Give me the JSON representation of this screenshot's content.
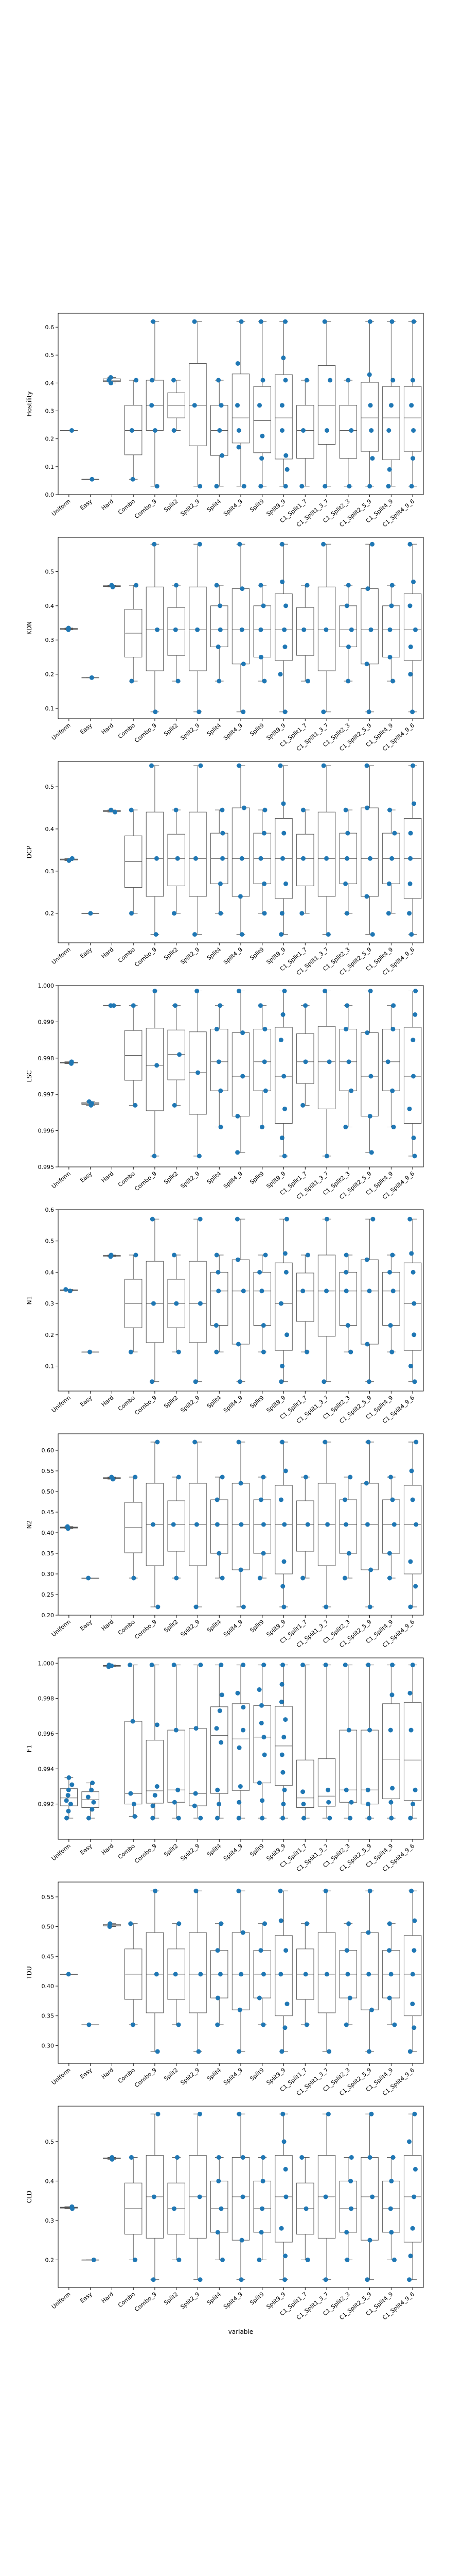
{
  "figure": {
    "xlabel": "variable"
  },
  "style": {
    "point_color": "#1f77b4",
    "box_color": "#555555"
  },
  "chart_data": [
    {
      "type": "box+strip",
      "ylabel": "Hostility",
      "ylim": [
        0.0,
        0.65
      ],
      "yticks": [
        0.0,
        0.1,
        0.2,
        0.3,
        0.4,
        0.5,
        0.6
      ],
      "categories": [
        "Uniform",
        "Easy",
        "Hard",
        "Combo",
        "Combo_9",
        "Split2",
        "Split2_9",
        "Split4",
        "Split4_9",
        "Split9",
        "Split9_9",
        "C1_Split1_7",
        "C1_Split1_3_7",
        "C1_Split2_3",
        "C1_Split2_5_9",
        "C1_Split4_9",
        "C1_Split4_9_6"
      ],
      "values": [
        [
          0.23
        ],
        [
          0.055
        ],
        [
          0.41,
          0.4,
          0.42
        ],
        [
          0.055,
          0.23,
          0.41
        ],
        [
          0.03,
          0.23,
          0.32,
          0.41,
          0.62
        ],
        [
          0.23,
          0.41
        ],
        [
          0.03,
          0.32,
          0.62
        ],
        [
          0.03,
          0.14,
          0.23,
          0.32,
          0.41
        ],
        [
          0.03,
          0.17,
          0.23,
          0.32,
          0.47,
          0.62
        ],
        [
          0.03,
          0.13,
          0.21,
          0.32,
          0.41,
          0.62
        ],
        [
          0.03,
          0.09,
          0.14,
          0.23,
          0.32,
          0.41,
          0.49,
          0.62
        ],
        [
          0.03,
          0.23,
          0.41
        ],
        [
          0.03,
          0.23,
          0.41,
          0.62
        ],
        [
          0.03,
          0.23,
          0.41
        ],
        [
          0.03,
          0.13,
          0.23,
          0.32,
          0.43,
          0.62
        ],
        [
          0.03,
          0.09,
          0.23,
          0.32,
          0.41,
          0.62
        ],
        [
          0.03,
          0.13,
          0.23,
          0.32,
          0.41,
          0.62
        ]
      ]
    },
    {
      "type": "box+strip",
      "ylabel": "KDN",
      "ylim": [
        0.07,
        0.6
      ],
      "yticks": [
        0.1,
        0.2,
        0.3,
        0.4,
        0.5
      ],
      "categories": [
        "Uniform",
        "Easy",
        "Hard",
        "Combo",
        "Combo_9",
        "Split2",
        "Split2_9",
        "Split4",
        "Split4_9",
        "Split9",
        "Split9_9",
        "C1_Split1_7",
        "C1_Split1_3_7",
        "C1_Split2_3",
        "C1_Split2_5_9",
        "C1_Split4_9",
        "C1_Split4_9_6"
      ],
      "values": [
        [
          0.335,
          0.33
        ],
        [
          0.19
        ],
        [
          0.46,
          0.455
        ],
        [
          0.18,
          0.46
        ],
        [
          0.09,
          0.33,
          0.58
        ],
        [
          0.18,
          0.33,
          0.46
        ],
        [
          0.09,
          0.33,
          0.58
        ],
        [
          0.18,
          0.28,
          0.33,
          0.4,
          0.46
        ],
        [
          0.09,
          0.23,
          0.33,
          0.45,
          0.58
        ],
        [
          0.18,
          0.25,
          0.33,
          0.4,
          0.46
        ],
        [
          0.09,
          0.2,
          0.28,
          0.33,
          0.4,
          0.47,
          0.58
        ],
        [
          0.18,
          0.33,
          0.46
        ],
        [
          0.09,
          0.33,
          0.58
        ],
        [
          0.18,
          0.28,
          0.33,
          0.4,
          0.46
        ],
        [
          0.09,
          0.23,
          0.33,
          0.45,
          0.58
        ],
        [
          0.18,
          0.25,
          0.33,
          0.4,
          0.46
        ],
        [
          0.09,
          0.2,
          0.28,
          0.33,
          0.4,
          0.47,
          0.58
        ]
      ]
    },
    {
      "type": "box+strip",
      "ylabel": "DCP",
      "ylim": [
        0.13,
        0.56
      ],
      "yticks": [
        0.2,
        0.3,
        0.4,
        0.5
      ],
      "categories": [
        "Uniform",
        "Easy",
        "Hard",
        "Combo",
        "Combo_9",
        "Split2",
        "Split2_9",
        "Split4",
        "Split4_9",
        "Split9",
        "Split9_9",
        "C1_Split1_7",
        "C1_Split1_3_7",
        "C1_Split2_3",
        "C1_Split2_5_9",
        "C1_Split4_9",
        "C1_Split4_9_6"
      ],
      "values": [
        [
          0.33,
          0.325
        ],
        [
          0.2
        ],
        [
          0.445,
          0.44
        ],
        [
          0.2,
          0.445
        ],
        [
          0.15,
          0.33,
          0.55
        ],
        [
          0.2,
          0.33,
          0.445
        ],
        [
          0.15,
          0.33,
          0.55
        ],
        [
          0.2,
          0.27,
          0.33,
          0.39,
          0.445
        ],
        [
          0.15,
          0.24,
          0.33,
          0.45,
          0.55
        ],
        [
          0.2,
          0.27,
          0.33,
          0.39,
          0.445
        ],
        [
          0.15,
          0.2,
          0.27,
          0.33,
          0.39,
          0.46,
          0.55
        ],
        [
          0.2,
          0.33,
          0.445
        ],
        [
          0.15,
          0.33,
          0.55
        ],
        [
          0.2,
          0.27,
          0.33,
          0.39,
          0.445
        ],
        [
          0.15,
          0.24,
          0.33,
          0.45,
          0.55
        ],
        [
          0.2,
          0.27,
          0.33,
          0.39,
          0.445
        ],
        [
          0.15,
          0.2,
          0.27,
          0.33,
          0.39,
          0.46,
          0.55
        ]
      ]
    },
    {
      "type": "box+strip",
      "ylabel": "LSC",
      "ylim": [
        0.995,
        1.0
      ],
      "yticks": [
        0.995,
        0.996,
        0.997,
        0.998,
        0.999,
        1.0
      ],
      "categories": [
        "Uniform",
        "Easy",
        "Hard",
        "Combo",
        "Combo_9",
        "Split2",
        "Split2_9",
        "Split4",
        "Split4_9",
        "Split9",
        "Split9_9",
        "C1_Split1_7",
        "C1_Split1_3_7",
        "C1_Split2_3",
        "C1_Split2_5_9",
        "C1_Split4_9",
        "C1_Split4_9_6"
      ],
      "values": [
        [
          0.99785,
          0.9979
        ],
        [
          0.99675,
          0.9967,
          0.9968
        ],
        [
          0.99945,
          0.99945
        ],
        [
          0.9967,
          0.99945
        ],
        [
          0.9953,
          0.9978,
          0.99985
        ],
        [
          0.9967,
          0.9981,
          0.99945
        ],
        [
          0.9953,
          0.9976,
          0.99985
        ],
        [
          0.9961,
          0.9971,
          0.9979,
          0.9988,
          0.99945
        ],
        [
          0.9954,
          0.9964,
          0.9975,
          0.9987,
          0.99985
        ],
        [
          0.9961,
          0.9971,
          0.9979,
          0.9988,
          0.99945
        ],
        [
          0.9953,
          0.9958,
          0.9966,
          0.9975,
          0.9985,
          0.9992,
          0.99985
        ],
        [
          0.9967,
          0.9979,
          0.99945
        ],
        [
          0.9953,
          0.9979,
          0.99985
        ],
        [
          0.9961,
          0.9971,
          0.9979,
          0.9988,
          0.99945
        ],
        [
          0.9954,
          0.9964,
          0.9975,
          0.9987,
          0.99985
        ],
        [
          0.9961,
          0.9971,
          0.9979,
          0.9988,
          0.99945
        ],
        [
          0.9953,
          0.9958,
          0.9966,
          0.9975,
          0.9985,
          0.9992,
          0.99985
        ]
      ]
    },
    {
      "type": "box+strip",
      "ylabel": "N1",
      "ylim": [
        0.02,
        0.6
      ],
      "yticks": [
        0.1,
        0.2,
        0.3,
        0.4,
        0.5,
        0.6
      ],
      "categories": [
        "Uniform",
        "Easy",
        "Hard",
        "Combo",
        "Combo_9",
        "Split2",
        "Split2_9",
        "Split4",
        "Split4_9",
        "Split9",
        "Split9_9",
        "C1_Split1_7",
        "C1_Split1_3_7",
        "C1_Split2_3",
        "C1_Split2_5_9",
        "C1_Split4_9",
        "C1_Split4_9_6"
      ],
      "values": [
        [
          0.345,
          0.34
        ],
        [
          0.145
        ],
        [
          0.455,
          0.45
        ],
        [
          0.145,
          0.455
        ],
        [
          0.05,
          0.3,
          0.57
        ],
        [
          0.145,
          0.3,
          0.455
        ],
        [
          0.05,
          0.3,
          0.57
        ],
        [
          0.145,
          0.23,
          0.34,
          0.4,
          0.455
        ],
        [
          0.05,
          0.17,
          0.34,
          0.44,
          0.57
        ],
        [
          0.145,
          0.23,
          0.34,
          0.4,
          0.455
        ],
        [
          0.05,
          0.1,
          0.2,
          0.3,
          0.4,
          0.46,
          0.57
        ],
        [
          0.145,
          0.34,
          0.455
        ],
        [
          0.05,
          0.34,
          0.57
        ],
        [
          0.145,
          0.23,
          0.34,
          0.4,
          0.455
        ],
        [
          0.05,
          0.17,
          0.34,
          0.44,
          0.57
        ],
        [
          0.145,
          0.23,
          0.34,
          0.4,
          0.455
        ],
        [
          0.05,
          0.1,
          0.2,
          0.3,
          0.4,
          0.46,
          0.57
        ]
      ]
    },
    {
      "type": "box+strip",
      "ylabel": "N2",
      "ylim": [
        0.2,
        0.64
      ],
      "yticks": [
        0.2,
        0.25,
        0.3,
        0.35,
        0.4,
        0.45,
        0.5,
        0.55,
        0.6
      ],
      "categories": [
        "Uniform",
        "Easy",
        "Hard",
        "Combo",
        "Combo_9",
        "Split2",
        "Split2_9",
        "Split4",
        "Split4_9",
        "Split9",
        "Split9_9",
        "C1_Split1_7",
        "C1_Split1_3_7",
        "C1_Split2_3",
        "C1_Split2_5_9",
        "C1_Split4_9",
        "C1_Split4_9_6"
      ],
      "values": [
        [
          0.415,
          0.41
        ],
        [
          0.29
        ],
        [
          0.535,
          0.53
        ],
        [
          0.29,
          0.535
        ],
        [
          0.22,
          0.42,
          0.62
        ],
        [
          0.29,
          0.42,
          0.535
        ],
        [
          0.22,
          0.42,
          0.62
        ],
        [
          0.29,
          0.35,
          0.42,
          0.48,
          0.535
        ],
        [
          0.22,
          0.31,
          0.42,
          0.52,
          0.62
        ],
        [
          0.29,
          0.35,
          0.42,
          0.48,
          0.535
        ],
        [
          0.22,
          0.27,
          0.33,
          0.42,
          0.48,
          0.55,
          0.62
        ],
        [
          0.29,
          0.42,
          0.535
        ],
        [
          0.22,
          0.42,
          0.62
        ],
        [
          0.29,
          0.35,
          0.42,
          0.48,
          0.535
        ],
        [
          0.22,
          0.31,
          0.42,
          0.52,
          0.62
        ],
        [
          0.29,
          0.35,
          0.42,
          0.48,
          0.535
        ],
        [
          0.22,
          0.27,
          0.33,
          0.42,
          0.48,
          0.55,
          0.62
        ]
      ]
    },
    {
      "type": "box+strip",
      "ylabel": "F1",
      "ylim": [
        0.99,
        1.0003
      ],
      "yticks": [
        0.992,
        0.994,
        0.996,
        0.998,
        1.0
      ],
      "categories": [
        "Uniform",
        "Easy",
        "Hard",
        "Combo",
        "Combo_9",
        "Split2",
        "Split2_9",
        "Split4",
        "Split4_9",
        "Split9",
        "Split9_9",
        "C1_Split1_7",
        "C1_Split1_3_7",
        "C1_Split2_3",
        "C1_Split2_5_9",
        "C1_Split4_9",
        "C1_Split4_9_6"
      ],
      "values": [
        [
          0.9912,
          0.9916,
          0.992,
          0.9922,
          0.9925,
          0.9928,
          0.9931,
          0.9935
        ],
        [
          0.9912,
          0.9917,
          0.9921,
          0.9924,
          0.9928,
          0.9932
        ],
        [
          0.9998,
          0.99985,
          0.9999
        ],
        [
          0.9913,
          0.992,
          0.9926,
          0.9967,
          0.9999
        ],
        [
          0.9912,
          0.9919,
          0.9925,
          0.993,
          0.9965,
          0.9999
        ],
        [
          0.9912,
          0.9921,
          0.9928,
          0.9962,
          0.9999
        ],
        [
          0.9912,
          0.9919,
          0.9926,
          0.9963,
          0.9999
        ],
        [
          0.9912,
          0.992,
          0.9928,
          0.9955,
          0.9963,
          0.9973,
          0.9982,
          0.9999
        ],
        [
          0.9912,
          0.9921,
          0.993,
          0.9952,
          0.9962,
          0.9975,
          0.9983,
          0.9999
        ],
        [
          0.9912,
          0.9922,
          0.9932,
          0.9948,
          0.9958,
          0.9966,
          0.9976,
          0.9985,
          0.9999
        ],
        [
          0.9912,
          0.992,
          0.9928,
          0.9938,
          0.9948,
          0.9958,
          0.9968,
          0.9978,
          0.9988,
          0.9999
        ],
        [
          0.9912,
          0.992,
          0.9927,
          0.9999
        ],
        [
          0.9912,
          0.9921,
          0.9928,
          0.9999
        ],
        [
          0.9912,
          0.9921,
          0.9928,
          0.9962,
          0.9999
        ],
        [
          0.9912,
          0.992,
          0.9928,
          0.9962,
          0.9999
        ],
        [
          0.9912,
          0.9921,
          0.9929,
          0.9962,
          0.9982,
          0.9999
        ],
        [
          0.9912,
          0.992,
          0.9928,
          0.9962,
          0.9983,
          0.9999
        ]
      ]
    },
    {
      "type": "box+strip",
      "ylabel": "TDU",
      "ylim": [
        0.27,
        0.575
      ],
      "yticks": [
        0.3,
        0.35,
        0.4,
        0.45,
        0.5,
        0.55
      ],
      "categories": [
        "Uniform",
        "Easy",
        "Hard",
        "Combo",
        "Combo_9",
        "Split2",
        "Split2_9",
        "Split4",
        "Split4_9",
        "Split9",
        "Split9_9",
        "C1_Split1_7",
        "C1_Split1_3_7",
        "C1_Split2_3",
        "C1_Split2_5_9",
        "C1_Split4_9",
        "C1_Split4_9_6"
      ],
      "values": [
        [
          0.42
        ],
        [
          0.335
        ],
        [
          0.505,
          0.5
        ],
        [
          0.335,
          0.505
        ],
        [
          0.29,
          0.42,
          0.56
        ],
        [
          0.335,
          0.42,
          0.505
        ],
        [
          0.29,
          0.42,
          0.56
        ],
        [
          0.335,
          0.38,
          0.42,
          0.46,
          0.505
        ],
        [
          0.29,
          0.36,
          0.42,
          0.49,
          0.56
        ],
        [
          0.335,
          0.38,
          0.42,
          0.46,
          0.505
        ],
        [
          0.29,
          0.33,
          0.37,
          0.42,
          0.46,
          0.51,
          0.56
        ],
        [
          0.335,
          0.42,
          0.505
        ],
        [
          0.29,
          0.42,
          0.56
        ],
        [
          0.335,
          0.38,
          0.42,
          0.46,
          0.505
        ],
        [
          0.29,
          0.36,
          0.42,
          0.49,
          0.56
        ],
        [
          0.335,
          0.38,
          0.42,
          0.46,
          0.505
        ],
        [
          0.29,
          0.33,
          0.37,
          0.42,
          0.46,
          0.51,
          0.56
        ]
      ]
    },
    {
      "type": "box+strip",
      "ylabel": "CLD",
      "ylim": [
        0.13,
        0.59
      ],
      "yticks": [
        0.2,
        0.3,
        0.4,
        0.5
      ],
      "categories": [
        "Uniform",
        "Easy",
        "Hard",
        "Combo",
        "Combo_9",
        "Split2",
        "Split2_9",
        "Split4",
        "Split4_9",
        "Split9",
        "Split9_9",
        "C1_Split1_7",
        "C1_Split1_3_7",
        "C1_Split2_3",
        "C1_Split2_5_9",
        "C1_Split4_9",
        "C1_Split4_9_6"
      ],
      "values": [
        [
          0.335,
          0.33
        ],
        [
          0.2
        ],
        [
          0.46,
          0.455
        ],
        [
          0.2,
          0.46
        ],
        [
          0.15,
          0.36,
          0.57
        ],
        [
          0.2,
          0.33,
          0.46
        ],
        [
          0.15,
          0.36,
          0.57
        ],
        [
          0.2,
          0.27,
          0.33,
          0.4,
          0.46
        ],
        [
          0.15,
          0.25,
          0.36,
          0.46,
          0.57
        ],
        [
          0.2,
          0.27,
          0.33,
          0.4,
          0.46
        ],
        [
          0.15,
          0.21,
          0.28,
          0.36,
          0.43,
          0.5,
          0.57
        ],
        [
          0.2,
          0.33,
          0.46
        ],
        [
          0.15,
          0.36,
          0.57
        ],
        [
          0.2,
          0.27,
          0.33,
          0.4,
          0.46
        ],
        [
          0.15,
          0.25,
          0.36,
          0.46,
          0.57
        ],
        [
          0.2,
          0.27,
          0.33,
          0.4,
          0.46
        ],
        [
          0.15,
          0.21,
          0.28,
          0.36,
          0.43,
          0.5,
          0.57
        ]
      ]
    }
  ]
}
